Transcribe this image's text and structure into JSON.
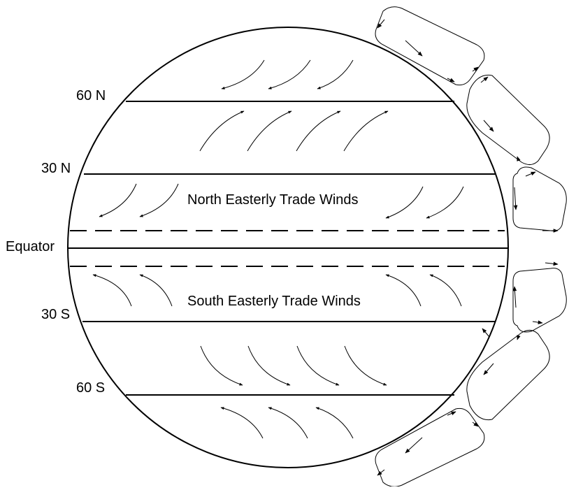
{
  "latitude_labels": {
    "n60": "60 N",
    "n30": "30 N",
    "equator": "Equator",
    "s30": "30 S",
    "s60": "60 S"
  },
  "wind_labels": {
    "north": "North Easterly Trade Winds",
    "south": "South Easterly Trade Winds"
  },
  "colors": {
    "line": "#000000",
    "background": "#ffffff"
  },
  "circulation_cells": {
    "northern_hemisphere": 3,
    "southern_hemisphere": 3
  }
}
